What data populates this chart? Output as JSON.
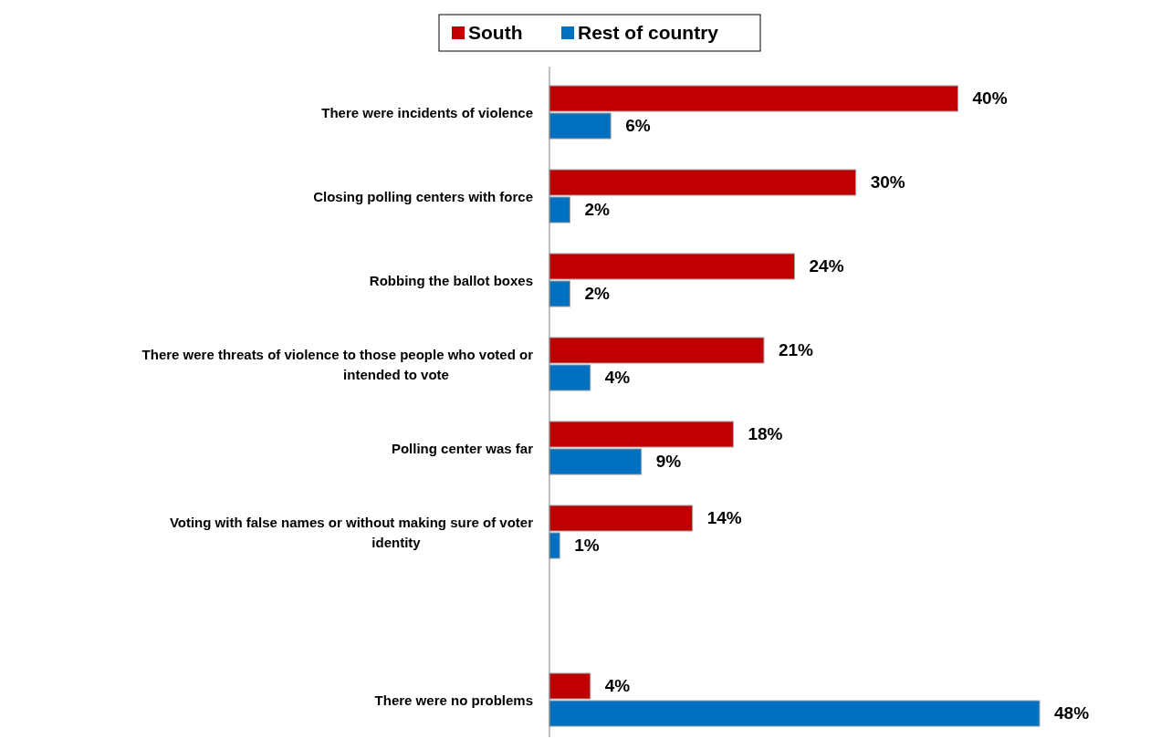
{
  "chart_data": {
    "type": "bar",
    "orientation": "horizontal",
    "legend": "top",
    "data_labels": true,
    "categories": [
      "There were incidents of violence",
      "Closing polling centers with force",
      "Robbing the ballot boxes",
      "There were threats of violence to those people who voted or intended to vote",
      "Polling center was far",
      "Voting with false names or without making sure of voter identity",
      null,
      "There were no problems"
    ],
    "series": [
      {
        "name": "South",
        "color": "#c00000",
        "values": [
          40,
          30,
          24,
          21,
          18,
          14,
          null,
          4
        ],
        "value_labels": [
          "40%",
          "30%",
          "24%",
          "21%",
          "18%",
          "14%",
          null,
          "4%"
        ]
      },
      {
        "name": "Rest of country",
        "color": "#0070c0",
        "values": [
          6,
          2,
          2,
          4,
          9,
          1,
          null,
          48
        ],
        "value_labels": [
          "6%",
          "2%",
          "2%",
          "4%",
          "9%",
          "1%",
          null,
          "48%"
        ]
      }
    ]
  }
}
